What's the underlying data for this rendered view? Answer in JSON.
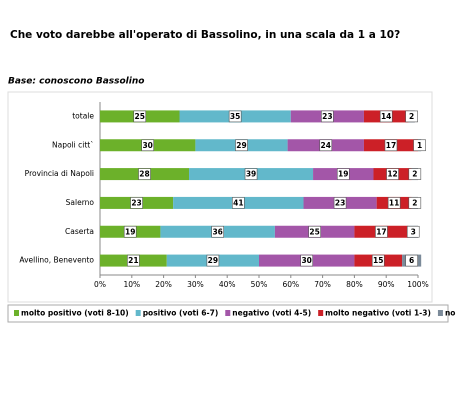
{
  "chart_data": {
    "type": "stacked-bar-horizontal",
    "title": "Che voto darebbe all'operato di Bassolino, in una scala da 1 a 10?",
    "subtitle": "Base: conoscono Bassolino",
    "categories": [
      "totale",
      "Napoli citt`",
      "Provincia di Napoli",
      "Salerno",
      "Caserta",
      "Avellino, Benevento"
    ],
    "series": [
      {
        "name": "molto positivo (voti 8-10)",
        "color": "#6cb12a",
        "values": [
          25,
          30,
          28,
          23,
          19,
          21
        ]
      },
      {
        "name": "positivo (voti 6-7)",
        "color": "#62b8cb",
        "values": [
          35,
          29,
          39,
          41,
          36,
          29
        ]
      },
      {
        "name": "negativo (voti 4-5)",
        "color": "#a356a8",
        "values": [
          23,
          24,
          19,
          23,
          25,
          30
        ]
      },
      {
        "name": "molto negativo (voti 1-3)",
        "color": "#cc2027",
        "values": [
          14,
          17,
          12,
          11,
          17,
          15
        ]
      },
      {
        "name": "non sa",
        "color": "#7b8a99",
        "values": [
          2,
          1,
          2,
          2,
          3,
          6
        ]
      }
    ],
    "xlim": [
      0,
      100
    ],
    "xticks": [
      {
        "value": 0,
        "label": "0%"
      },
      {
        "value": 10,
        "label": "10%"
      },
      {
        "value": 20,
        "label": "20%"
      },
      {
        "value": 30,
        "label": "30%"
      },
      {
        "value": 40,
        "label": "40%"
      },
      {
        "value": 50,
        "label": "50%"
      },
      {
        "value": 60,
        "label": "60%"
      },
      {
        "value": 70,
        "label": "70%"
      },
      {
        "value": 80,
        "label": "80%"
      },
      {
        "value": 90,
        "label": "90%"
      },
      {
        "value": 100,
        "label": "100%"
      }
    ]
  }
}
